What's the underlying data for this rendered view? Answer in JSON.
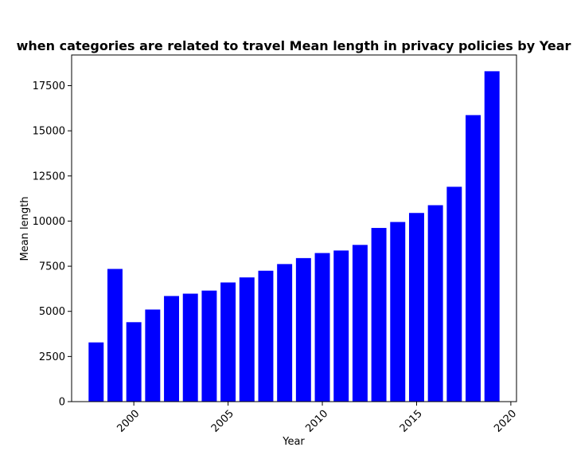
{
  "chart_data": {
    "type": "bar",
    "title": "when categories are related to travel Mean length in privacy policies by Year",
    "xlabel": "Year",
    "ylabel": "Mean length",
    "x": [
      1998,
      1999,
      2000,
      2001,
      2002,
      2003,
      2004,
      2005,
      2006,
      2007,
      2008,
      2009,
      2010,
      2011,
      2012,
      2013,
      2014,
      2015,
      2016,
      2017,
      2018,
      2019
    ],
    "values": [
      3280,
      7350,
      4400,
      5100,
      5850,
      5980,
      6150,
      6600,
      6880,
      7250,
      7620,
      7950,
      8230,
      8370,
      8680,
      9620,
      9950,
      10450,
      10880,
      11900,
      15870,
      18300
    ],
    "xticks": [
      2000,
      2005,
      2010,
      2015,
      2020
    ],
    "yticks": [
      0,
      2500,
      5000,
      7500,
      10000,
      12500,
      15000,
      17500
    ],
    "xlim": [
      1996.7,
      2020.3
    ],
    "ylim": [
      0,
      19200
    ],
    "bar_color": "#0000ff",
    "grid": false,
    "legend": false
  }
}
